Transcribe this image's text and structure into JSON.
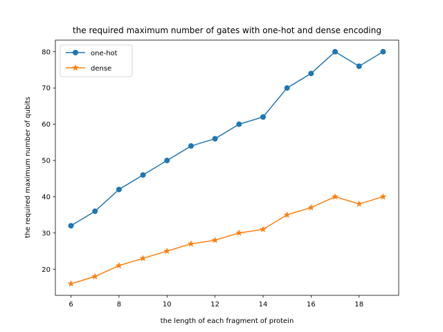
{
  "chart_data": {
    "type": "line",
    "title": "the required maximum number of gates with one-hot and dense encoding",
    "xlabel": "the length of each fragment of protein",
    "ylabel": "the required maximum number of qubits",
    "x": [
      6,
      7,
      8,
      9,
      10,
      11,
      12,
      13,
      14,
      15,
      16,
      17,
      18,
      19
    ],
    "xlim": [
      5.35,
      19.65
    ],
    "ylim": [
      12.8,
      83.2
    ],
    "xticks": [
      6,
      8,
      10,
      12,
      14,
      16,
      18
    ],
    "yticks": [
      20,
      30,
      40,
      50,
      60,
      70,
      80
    ],
    "grid": false,
    "legend_position": "top-left",
    "series": [
      {
        "name": "one-hot",
        "color": "#1f77b4",
        "marker": "circle",
        "values": [
          32,
          36,
          42,
          46,
          50,
          54,
          56,
          60,
          62,
          70,
          74,
          80,
          76,
          80
        ]
      },
      {
        "name": "dense",
        "color": "#ff7f0e",
        "marker": "star",
        "values": [
          16,
          18,
          21,
          23,
          25,
          27,
          28,
          30,
          31,
          35,
          37,
          40,
          38,
          40
        ]
      }
    ]
  }
}
